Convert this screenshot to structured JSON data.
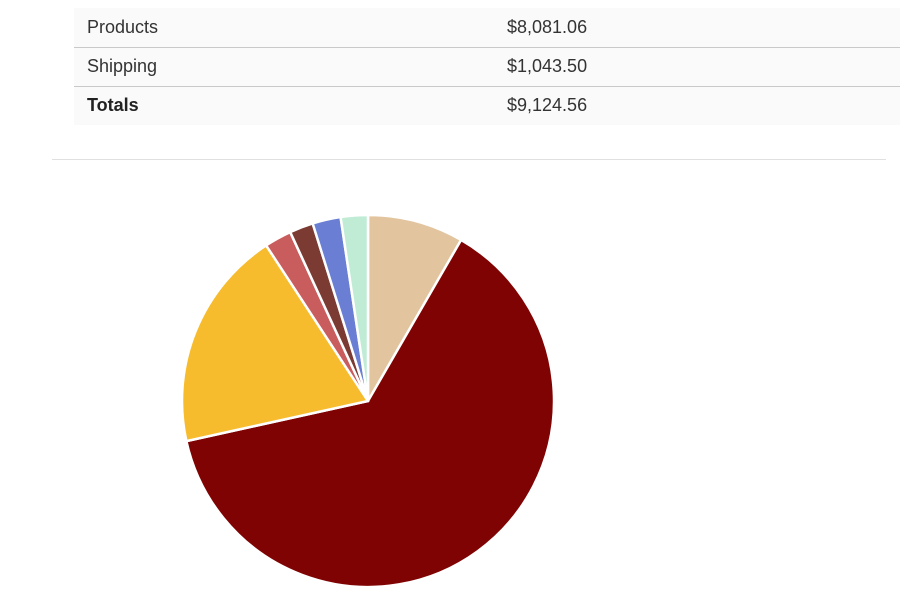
{
  "totals_table": {
    "rows": [
      {
        "label": "Products",
        "value": "$8,081.06"
      },
      {
        "label": "Shipping",
        "value": "$1,043.50"
      },
      {
        "label": "Totals",
        "value": "$9,124.56"
      }
    ]
  },
  "chart_data": {
    "type": "pie",
    "slices": [
      {
        "value": 8.5,
        "color": "#e2c59f"
      },
      {
        "value": 64.4,
        "color": "#800303"
      },
      {
        "value": 19.6,
        "color": "#f7bc2e"
      },
      {
        "value": 2.4,
        "color": "#c95d5d"
      },
      {
        "value": 2.1,
        "color": "#7b3a32"
      },
      {
        "value": 2.5,
        "color": "#6a7fd4"
      },
      {
        "value": 2.4,
        "color": "#c0ecd6"
      }
    ],
    "legend": "none"
  }
}
